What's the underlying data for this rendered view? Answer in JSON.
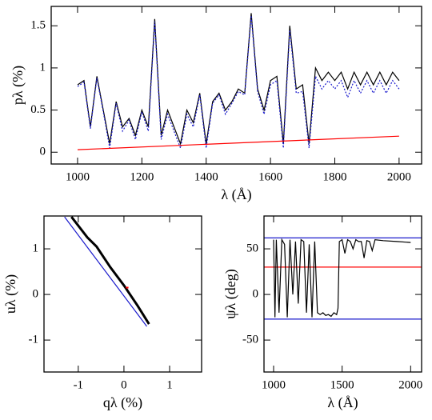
{
  "chart_data": [
    {
      "type": "line",
      "xlabel": "λ (Å)",
      "ylabel": "pλ (%)",
      "xlim": [
        918,
        2070
      ],
      "ylim": [
        -0.14,
        1.73
      ],
      "xticks": [
        1000,
        1200,
        1400,
        1600,
        1800,
        2000
      ],
      "yticks": [
        0,
        0.5,
        1,
        1.5
      ],
      "series": [
        {
          "color": "#000000",
          "style": "solid",
          "linewidth": 1.2,
          "x": [
            1000,
            1020,
            1040,
            1060,
            1080,
            1100,
            1120,
            1140,
            1160,
            1180,
            1200,
            1220,
            1240,
            1260,
            1280,
            1300,
            1320,
            1340,
            1360,
            1380,
            1400,
            1420,
            1440,
            1460,
            1480,
            1500,
            1520,
            1540,
            1560,
            1580,
            1600,
            1620,
            1640,
            1660,
            1680,
            1700,
            1720,
            1740,
            1760,
            1780,
            1800,
            1820,
            1840,
            1860,
            1880,
            1900,
            1920,
            1940,
            1960,
            1980,
            2000
          ],
          "values": [
            0.8,
            0.85,
            0.3,
            0.9,
            0.5,
            0.1,
            0.6,
            0.3,
            0.4,
            0.2,
            0.5,
            0.3,
            1.58,
            0.2,
            0.5,
            0.3,
            0.1,
            0.5,
            0.35,
            0.7,
            0.1,
            0.6,
            0.7,
            0.5,
            0.6,
            0.75,
            0.7,
            1.65,
            0.75,
            0.5,
            0.85,
            0.9,
            0.1,
            1.5,
            0.75,
            0.8,
            0.1,
            1.0,
            0.85,
            0.95,
            0.85,
            0.95,
            0.75,
            0.95,
            0.8,
            0.95,
            0.8,
            0.95,
            0.8,
            0.95,
            0.85
          ]
        },
        {
          "color": "#1a1acc",
          "style": "dotted",
          "linewidth": 1.2,
          "x": [
            1000,
            1020,
            1040,
            1060,
            1080,
            1100,
            1120,
            1140,
            1160,
            1180,
            1200,
            1220,
            1240,
            1260,
            1280,
            1300,
            1320,
            1340,
            1360,
            1380,
            1400,
            1420,
            1440,
            1460,
            1480,
            1500,
            1520,
            1540,
            1560,
            1580,
            1600,
            1620,
            1640,
            1660,
            1680,
            1700,
            1720,
            1740,
            1760,
            1780,
            1800,
            1820,
            1840,
            1860,
            1880,
            1900,
            1920,
            1940,
            1960,
            1980,
            2000
          ],
          "values": [
            0.78,
            0.83,
            0.28,
            0.88,
            0.48,
            0.05,
            0.58,
            0.25,
            0.38,
            0.15,
            0.48,
            0.25,
            1.55,
            0.15,
            0.45,
            0.25,
            0.05,
            0.45,
            0.3,
            0.68,
            0.05,
            0.58,
            0.68,
            0.45,
            0.58,
            0.72,
            0.68,
            1.62,
            0.72,
            0.45,
            0.8,
            0.85,
            0.05,
            1.45,
            0.7,
            0.72,
            0.05,
            0.9,
            0.75,
            0.85,
            0.75,
            0.85,
            0.65,
            0.85,
            0.7,
            0.85,
            0.7,
            0.85,
            0.7,
            0.85,
            0.75
          ]
        },
        {
          "color": "#ff0000",
          "style": "solid",
          "linewidth": 1.2,
          "x": [
            1000,
            2000
          ],
          "values": [
            0.03,
            0.19
          ]
        }
      ]
    },
    {
      "type": "line",
      "xlabel": "qλ (%)",
      "ylabel": "uλ (%)",
      "xlim": [
        -1.75,
        1.7
      ],
      "ylim": [
        -1.7,
        1.72
      ],
      "xticks": [
        -1,
        0,
        1
      ],
      "yticks": [
        -1,
        0,
        1
      ],
      "series": [
        {
          "color": "#1a1acc",
          "style": "solid",
          "linewidth": 1.2,
          "x": [
            -1.3,
            0.5
          ],
          "values": [
            1.7,
            -0.7
          ]
        },
        {
          "color": "#000000",
          "style": "solid",
          "linewidth": 3,
          "x": [
            -1.15,
            -0.8,
            -0.6,
            -0.3,
            0,
            0.3,
            0.55
          ],
          "values": [
            1.7,
            1.25,
            1.05,
            0.6,
            0.2,
            -0.25,
            -0.65
          ]
        },
        {
          "color": "#ff0000",
          "style": "solid",
          "linewidth": 2,
          "x": [
            0.04,
            0.1
          ],
          "values": [
            0.15,
            0.15
          ]
        }
      ]
    },
    {
      "type": "line",
      "xlabel": "λ (Å)",
      "ylabel": "ψλ (deg)",
      "xlim": [
        930,
        2080
      ],
      "ylim": [
        -85,
        86
      ],
      "xticks": [
        1000,
        1500,
        2000
      ],
      "yticks": [
        -50,
        0,
        50
      ],
      "series": [
        {
          "color": "#1a1acc",
          "style": "solid",
          "linewidth": 1.2,
          "x": [
            930,
            2080
          ],
          "values": [
            62,
            62
          ]
        },
        {
          "color": "#1a1acc",
          "style": "solid",
          "linewidth": 1.2,
          "x": [
            930,
            2080
          ],
          "values": [
            -27,
            -27
          ]
        },
        {
          "color": "#ff0000",
          "style": "solid",
          "linewidth": 1.2,
          "x": [
            930,
            2080
          ],
          "values": [
            30,
            30
          ]
        },
        {
          "color": "#000000",
          "style": "solid",
          "linewidth": 1.2,
          "x": [
            1000,
            1010,
            1020,
            1040,
            1060,
            1080,
            1100,
            1120,
            1140,
            1160,
            1180,
            1200,
            1220,
            1240,
            1260,
            1280,
            1300,
            1320,
            1340,
            1360,
            1380,
            1400,
            1420,
            1440,
            1460,
            1470,
            1480,
            1500,
            1520,
            1540,
            1560,
            1580,
            1600,
            1620,
            1640,
            1660,
            1680,
            1700,
            1720,
            1740,
            1800,
            1900,
            2000
          ],
          "values": [
            60,
            -25,
            60,
            -20,
            60,
            55,
            -25,
            60,
            0,
            58,
            -10,
            60,
            58,
            -20,
            55,
            -25,
            58,
            -20,
            -22,
            -20,
            -23,
            -22,
            -24,
            -20,
            -22,
            -15,
            58,
            60,
            45,
            60,
            58,
            50,
            60,
            58,
            58,
            40,
            59,
            58,
            48,
            60,
            59,
            58,
            57
          ]
        }
      ]
    }
  ]
}
